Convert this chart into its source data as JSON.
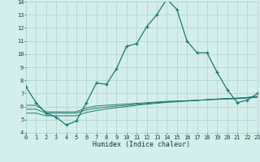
{
  "xlabel": "Humidex (Indice chaleur)",
  "x_values": [
    0,
    1,
    2,
    3,
    4,
    5,
    6,
    7,
    8,
    9,
    10,
    11,
    12,
    13,
    14,
    15,
    16,
    17,
    18,
    19,
    20,
    21,
    22,
    23
  ],
  "main_line": [
    7.5,
    6.3,
    5.5,
    5.2,
    4.6,
    4.9,
    6.3,
    7.8,
    7.7,
    8.9,
    10.6,
    10.8,
    12.1,
    13.0,
    14.2,
    13.4,
    11.0,
    10.1,
    10.1,
    8.6,
    7.3,
    6.3,
    6.5,
    7.0
  ],
  "line2": [
    6.1,
    6.1,
    5.6,
    5.6,
    5.6,
    5.6,
    5.9,
    6.05,
    6.1,
    6.15,
    6.2,
    6.25,
    6.3,
    6.35,
    6.4,
    6.42,
    6.45,
    6.48,
    6.52,
    6.55,
    6.58,
    6.6,
    6.65,
    6.7
  ],
  "line3": [
    5.5,
    5.5,
    5.3,
    5.3,
    5.3,
    5.3,
    5.55,
    5.7,
    5.82,
    5.92,
    6.0,
    6.1,
    6.18,
    6.25,
    6.32,
    6.37,
    6.42,
    6.47,
    6.52,
    6.56,
    6.6,
    6.63,
    6.68,
    6.75
  ],
  "line4": [
    5.8,
    5.8,
    5.5,
    5.5,
    5.5,
    5.5,
    5.75,
    5.88,
    5.96,
    6.04,
    6.1,
    6.18,
    6.24,
    6.3,
    6.36,
    6.4,
    6.44,
    6.48,
    6.53,
    6.58,
    6.62,
    6.65,
    6.7,
    6.78
  ],
  "ylim": [
    4,
    14
  ],
  "xlim": [
    0,
    23
  ],
  "yticks": [
    4,
    5,
    6,
    7,
    8,
    9,
    10,
    11,
    12,
    13,
    14
  ],
  "xticks": [
    0,
    1,
    2,
    3,
    4,
    5,
    6,
    7,
    8,
    9,
    10,
    11,
    12,
    13,
    14,
    15,
    16,
    17,
    18,
    19,
    20,
    21,
    22,
    23
  ],
  "line_color": "#1a7a6e",
  "bg_color": "#d4eeeb",
  "grid_color": "#a8d4d0"
}
